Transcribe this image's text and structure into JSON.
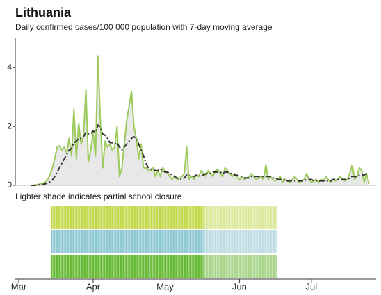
{
  "chart_data": {
    "type": "line",
    "title": "Lithuania",
    "subtitle": "Daily confirmed cases/100 000 population with 7-day moving average",
    "xlim": [
      0,
      149
    ],
    "xticks": [
      {
        "value": 0,
        "label": "Mar"
      },
      {
        "value": 31,
        "label": "Apr"
      },
      {
        "value": 61,
        "label": "May"
      },
      {
        "value": 92,
        "label": "Jun"
      },
      {
        "value": 122,
        "label": "Jul"
      }
    ],
    "ylim": [
      0,
      5
    ],
    "yticks": [
      0,
      2,
      4
    ],
    "x": [
      5,
      6,
      7,
      8,
      9,
      10,
      11,
      12,
      13,
      14,
      15,
      16,
      17,
      18,
      19,
      20,
      21,
      22,
      23,
      24,
      25,
      26,
      27,
      28,
      29,
      30,
      31,
      32,
      33,
      34,
      35,
      36,
      37,
      38,
      39,
      40,
      41,
      42,
      43,
      44,
      45,
      46,
      47,
      48,
      49,
      50,
      51,
      52,
      53,
      54,
      55,
      56,
      57,
      58,
      59,
      60,
      61,
      62,
      63,
      64,
      65,
      66,
      67,
      68,
      69,
      70,
      71,
      72,
      73,
      74,
      75,
      76,
      77,
      78,
      79,
      80,
      81,
      82,
      83,
      84,
      85,
      86,
      87,
      88,
      89,
      90,
      91,
      92,
      93,
      94,
      95,
      96,
      97,
      98,
      99,
      100,
      101,
      102,
      103,
      104,
      105,
      106,
      107,
      108,
      109,
      110,
      111,
      112,
      113,
      114,
      115,
      116,
      117,
      118,
      119,
      120,
      121,
      122,
      123,
      124,
      125,
      126,
      127,
      128,
      129,
      130,
      131,
      132,
      133,
      134,
      135,
      136,
      137,
      138,
      139,
      140,
      141,
      142,
      143,
      144,
      145,
      146
    ],
    "series": [
      {
        "name": "daily",
        "color": "#9ccb5c",
        "fill": "#e8e8e8",
        "values": [
          0,
          0,
          0.02,
          0.03,
          0.05,
          0.07,
          0.1,
          0.2,
          0.35,
          0.6,
          0.9,
          1.3,
          1.35,
          1.2,
          1.3,
          1.1,
          1.6,
          1.0,
          2.6,
          0.9,
          2.1,
          1.4,
          1.7,
          3.25,
          0.8,
          1.2,
          1.8,
          1.0,
          4.4,
          2.2,
          0.6,
          1.5,
          1.3,
          1.4,
          1.2,
          1.3,
          2.0,
          0.3,
          0.6,
          1.4,
          2.2,
          2.7,
          3.2,
          2.0,
          1.6,
          0.9,
          1.4,
          0.6,
          0.6,
          0.5,
          0.5,
          0.6,
          0.3,
          0.5,
          0.3,
          0.6,
          0.5,
          0.4,
          0.3,
          0.2,
          0.3,
          0.2,
          0.25,
          0.3,
          0.4,
          1.3,
          0.2,
          0.3,
          0.2,
          0.35,
          0.3,
          0.5,
          0.4,
          0.3,
          0.5,
          0.4,
          0.3,
          0.5,
          0.55,
          0.4,
          0.3,
          0.6,
          0.5,
          0.4,
          0.3,
          0.4,
          0.3,
          0.2,
          0.3,
          0.2,
          0.25,
          0.3,
          0.4,
          0.3,
          0.2,
          0.25,
          0.3,
          0.2,
          0.7,
          0.2,
          0.3,
          0.2,
          0.15,
          0.2,
          0.3,
          0.1,
          0.2,
          0.15,
          0.1,
          0.2,
          0.3,
          0.2,
          0.1,
          0.15,
          0.2,
          0.4,
          0.2,
          0.1,
          0.15,
          0.2,
          0.1,
          0.2,
          0.15,
          0.3,
          0.2,
          0.1,
          0.2,
          0.15,
          0.2,
          0.3,
          0.2,
          0.15,
          0.2,
          0.4,
          0.7,
          0.2,
          0.3,
          0.6,
          0.5,
          0.1,
          0.4,
          0.05
        ]
      },
      {
        "name": "7-day moving average",
        "color": "#333333",
        "dash": true,
        "values": [
          0,
          0,
          0,
          0.01,
          0.02,
          0.03,
          0.05,
          0.08,
          0.12,
          0.18,
          0.3,
          0.45,
          0.6,
          0.75,
          0.9,
          1.05,
          1.2,
          1.25,
          1.45,
          1.5,
          1.6,
          1.6,
          1.65,
          1.8,
          1.75,
          1.75,
          1.85,
          1.8,
          2.05,
          1.95,
          1.75,
          1.7,
          1.6,
          1.45,
          1.45,
          1.4,
          1.45,
          1.3,
          1.2,
          1.3,
          1.4,
          1.5,
          1.6,
          1.65,
          1.6,
          1.4,
          1.2,
          1.0,
          0.75,
          0.6,
          0.55,
          0.55,
          0.5,
          0.5,
          0.55,
          0.5,
          0.45,
          0.45,
          0.4,
          0.35,
          0.3,
          0.25,
          0.2,
          0.2,
          0.25,
          0.35,
          0.35,
          0.3,
          0.3,
          0.35,
          0.3,
          0.35,
          0.35,
          0.4,
          0.4,
          0.4,
          0.45,
          0.45,
          0.45,
          0.45,
          0.4,
          0.45,
          0.45,
          0.4,
          0.4,
          0.35,
          0.35,
          0.3,
          0.3,
          0.25,
          0.25,
          0.25,
          0.3,
          0.3,
          0.3,
          0.3,
          0.3,
          0.3,
          0.3,
          0.3,
          0.3,
          0.25,
          0.25,
          0.2,
          0.2,
          0.2,
          0.2,
          0.15,
          0.15,
          0.15,
          0.15,
          0.15,
          0.15,
          0.15,
          0.15,
          0.2,
          0.2,
          0.2,
          0.15,
          0.15,
          0.15,
          0.15,
          0.15,
          0.15,
          0.15,
          0.15,
          0.2,
          0.2,
          0.2,
          0.2,
          0.2,
          0.2,
          0.2,
          0.25,
          0.3,
          0.3,
          0.3,
          0.35,
          0.35,
          0.35,
          0.4,
          0.4
        ]
      }
    ],
    "school_closure": {
      "label": "Lighter shade indicates partial school closure",
      "full": [
        13.3,
        77.1
      ],
      "partial": [
        77.1,
        107.5
      ],
      "rows": [
        {
          "color": "#c3d84a",
          "partial_color": "#dce99c"
        },
        {
          "color": "#8ec8d2",
          "partial_color": "#bfdee4"
        },
        {
          "color": "#66b933",
          "partial_color": "#a9d68c"
        }
      ]
    }
  }
}
